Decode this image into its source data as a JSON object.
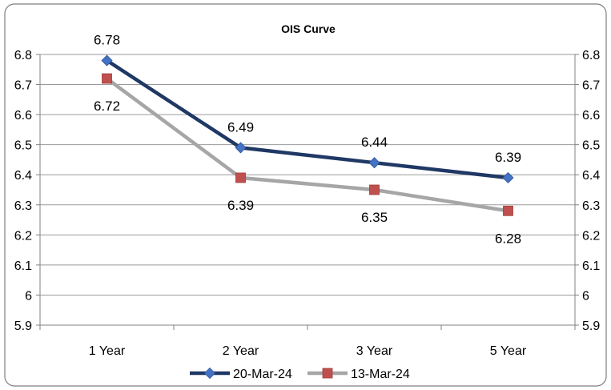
{
  "chart_data": {
    "type": "line",
    "title": "OIS Curve",
    "categories": [
      "1 Year",
      "2 Year",
      "3 Year",
      "5 Year"
    ],
    "series": [
      {
        "name": "20-Mar-24",
        "values": [
          6.78,
          6.49,
          6.44,
          6.39
        ],
        "color": "#1F3864",
        "marker": "diamond",
        "marker_color": "#4472C4",
        "label_position": "above"
      },
      {
        "name": "13-Mar-24",
        "values": [
          6.72,
          6.39,
          6.35,
          6.28
        ],
        "color": "#A6A6A6",
        "marker": "square",
        "marker_color": "#C0504D",
        "label_position": "below"
      }
    ],
    "ylim": [
      5.9,
      6.8
    ],
    "yticks": [
      "5.9",
      "6",
      "6.1",
      "6.2",
      "6.3",
      "6.4",
      "6.5",
      "6.6",
      "6.7",
      "6.8"
    ],
    "secondary_axis": true,
    "grid": "horizontal",
    "legend": "bottom",
    "xlabel": "",
    "ylabel": ""
  }
}
